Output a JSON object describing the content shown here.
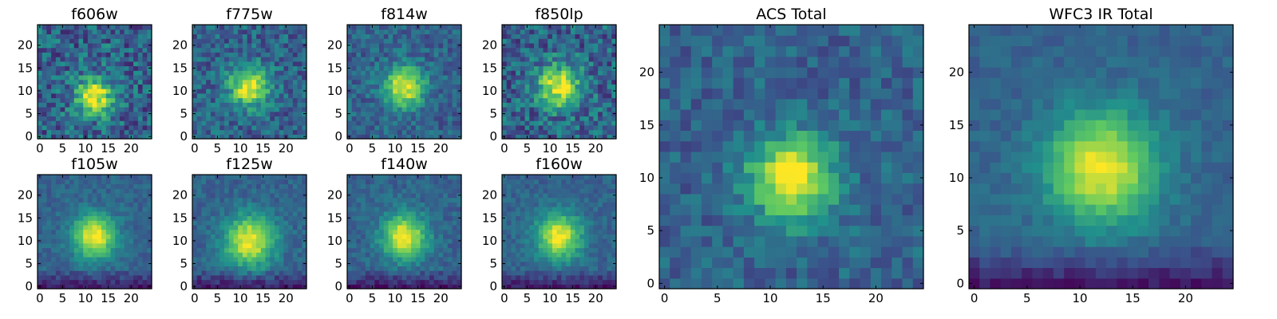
{
  "chart_data": [
    {
      "type": "heatmap",
      "title": "f606w",
      "xticks": [
        "0",
        "5",
        "10",
        "15",
        "20"
      ],
      "yticks": [
        "0",
        "5",
        "10",
        "15",
        "20"
      ],
      "grid": false,
      "xlim": [
        -0.5,
        24.5
      ],
      "ylim": [
        -0.5,
        24.5
      ],
      "grid_size": 25,
      "peak": [
        12,
        9
      ],
      "peak_spread": 2.8,
      "noise": 0.42,
      "seed": 606
    },
    {
      "type": "heatmap",
      "title": "f775w",
      "xticks": [
        "0",
        "5",
        "10",
        "15",
        "20"
      ],
      "yticks": [
        "0",
        "5",
        "10",
        "15",
        "20"
      ],
      "grid": false,
      "xlim": [
        -0.5,
        24.5
      ],
      "ylim": [
        -0.5,
        24.5
      ],
      "grid_size": 25,
      "peak": [
        12,
        11
      ],
      "peak_spread": 3.0,
      "noise": 0.32,
      "seed": 775
    },
    {
      "type": "heatmap",
      "title": "f814w",
      "xticks": [
        "0",
        "5",
        "10",
        "15",
        "20"
      ],
      "yticks": [
        "0",
        "5",
        "10",
        "15",
        "20"
      ],
      "grid": false,
      "xlim": [
        -0.5,
        24.5
      ],
      "ylim": [
        -0.5,
        24.5
      ],
      "grid_size": 25,
      "peak": [
        12,
        11
      ],
      "peak_spread": 3.0,
      "noise": 0.26,
      "seed": 814
    },
    {
      "type": "heatmap",
      "title": "f850lp",
      "xticks": [
        "0",
        "5",
        "10",
        "15",
        "20"
      ],
      "yticks": [
        "0",
        "5",
        "10",
        "15",
        "20"
      ],
      "grid": false,
      "xlim": [
        -0.5,
        24.5
      ],
      "ylim": [
        -0.5,
        24.5
      ],
      "grid_size": 25,
      "peak": [
        12,
        11
      ],
      "peak_spread": 3.2,
      "noise": 0.4,
      "seed": 850
    },
    {
      "type": "heatmap",
      "title": "ACS Total",
      "xticks": [
        "0",
        "5",
        "10",
        "15",
        "20"
      ],
      "yticks": [
        "0",
        "5",
        "10",
        "15",
        "20"
      ],
      "grid": false,
      "xlim": [
        -0.5,
        24.5
      ],
      "ylim": [
        -0.5,
        24.5
      ],
      "grid_size": 25,
      "peak": [
        12,
        10
      ],
      "peak_spread": 2.8,
      "noise": 0.24,
      "seed": 101
    },
    {
      "type": "heatmap",
      "title": "WFC3 IR Total",
      "xticks": [
        "0",
        "5",
        "10",
        "15",
        "20"
      ],
      "yticks": [
        "0",
        "5",
        "10",
        "15",
        "20"
      ],
      "grid": false,
      "xlim": [
        -0.5,
        24.5
      ],
      "ylim": [
        -0.5,
        24.5
      ],
      "grid_size": 25,
      "peak": [
        12,
        11
      ],
      "peak_spread": 3.6,
      "noise": 0.12,
      "seed": 202
    },
    {
      "type": "heatmap",
      "title": "f105w",
      "xticks": [
        "0",
        "5",
        "10",
        "15",
        "20"
      ],
      "yticks": [
        "0",
        "5",
        "10",
        "15",
        "20"
      ],
      "grid": false,
      "xlim": [
        -0.5,
        24.5
      ],
      "ylim": [
        -0.5,
        24.5
      ],
      "grid_size": 25,
      "peak": [
        12,
        11
      ],
      "peak_spread": 3.3,
      "noise": 0.16,
      "seed": 105
    },
    {
      "type": "heatmap",
      "title": "f125w",
      "xticks": [
        "0",
        "5",
        "10",
        "15",
        "20"
      ],
      "yticks": [
        "0",
        "5",
        "10",
        "15",
        "20"
      ],
      "grid": false,
      "xlim": [
        -0.5,
        24.5
      ],
      "ylim": [
        -0.5,
        24.5
      ],
      "grid_size": 25,
      "peak": [
        12,
        10
      ],
      "peak_spread": 3.8,
      "noise": 0.18,
      "seed": 125
    },
    {
      "type": "heatmap",
      "title": "f140w",
      "xticks": [
        "0",
        "5",
        "10",
        "15",
        "20"
      ],
      "yticks": [
        "0",
        "5",
        "10",
        "15",
        "20"
      ],
      "grid": false,
      "xlim": [
        -0.5,
        24.5
      ],
      "ylim": [
        -0.5,
        24.5
      ],
      "grid_size": 25,
      "peak": [
        12,
        11
      ],
      "peak_spread": 3.4,
      "noise": 0.18,
      "seed": 140
    },
    {
      "type": "heatmap",
      "title": "f160w",
      "xticks": [
        "0",
        "5",
        "10",
        "15",
        "20"
      ],
      "yticks": [
        "0",
        "5",
        "10",
        "15",
        "20"
      ],
      "grid": false,
      "xlim": [
        -0.5,
        24.5
      ],
      "ylim": [
        -0.5,
        24.5
      ],
      "grid_size": 25,
      "peak": [
        12,
        11
      ],
      "peak_spread": 3.4,
      "noise": 0.16,
      "seed": 160
    }
  ],
  "colormap": [
    "#440154",
    "#3b528b",
    "#21918c",
    "#5ec962",
    "#fde725"
  ]
}
